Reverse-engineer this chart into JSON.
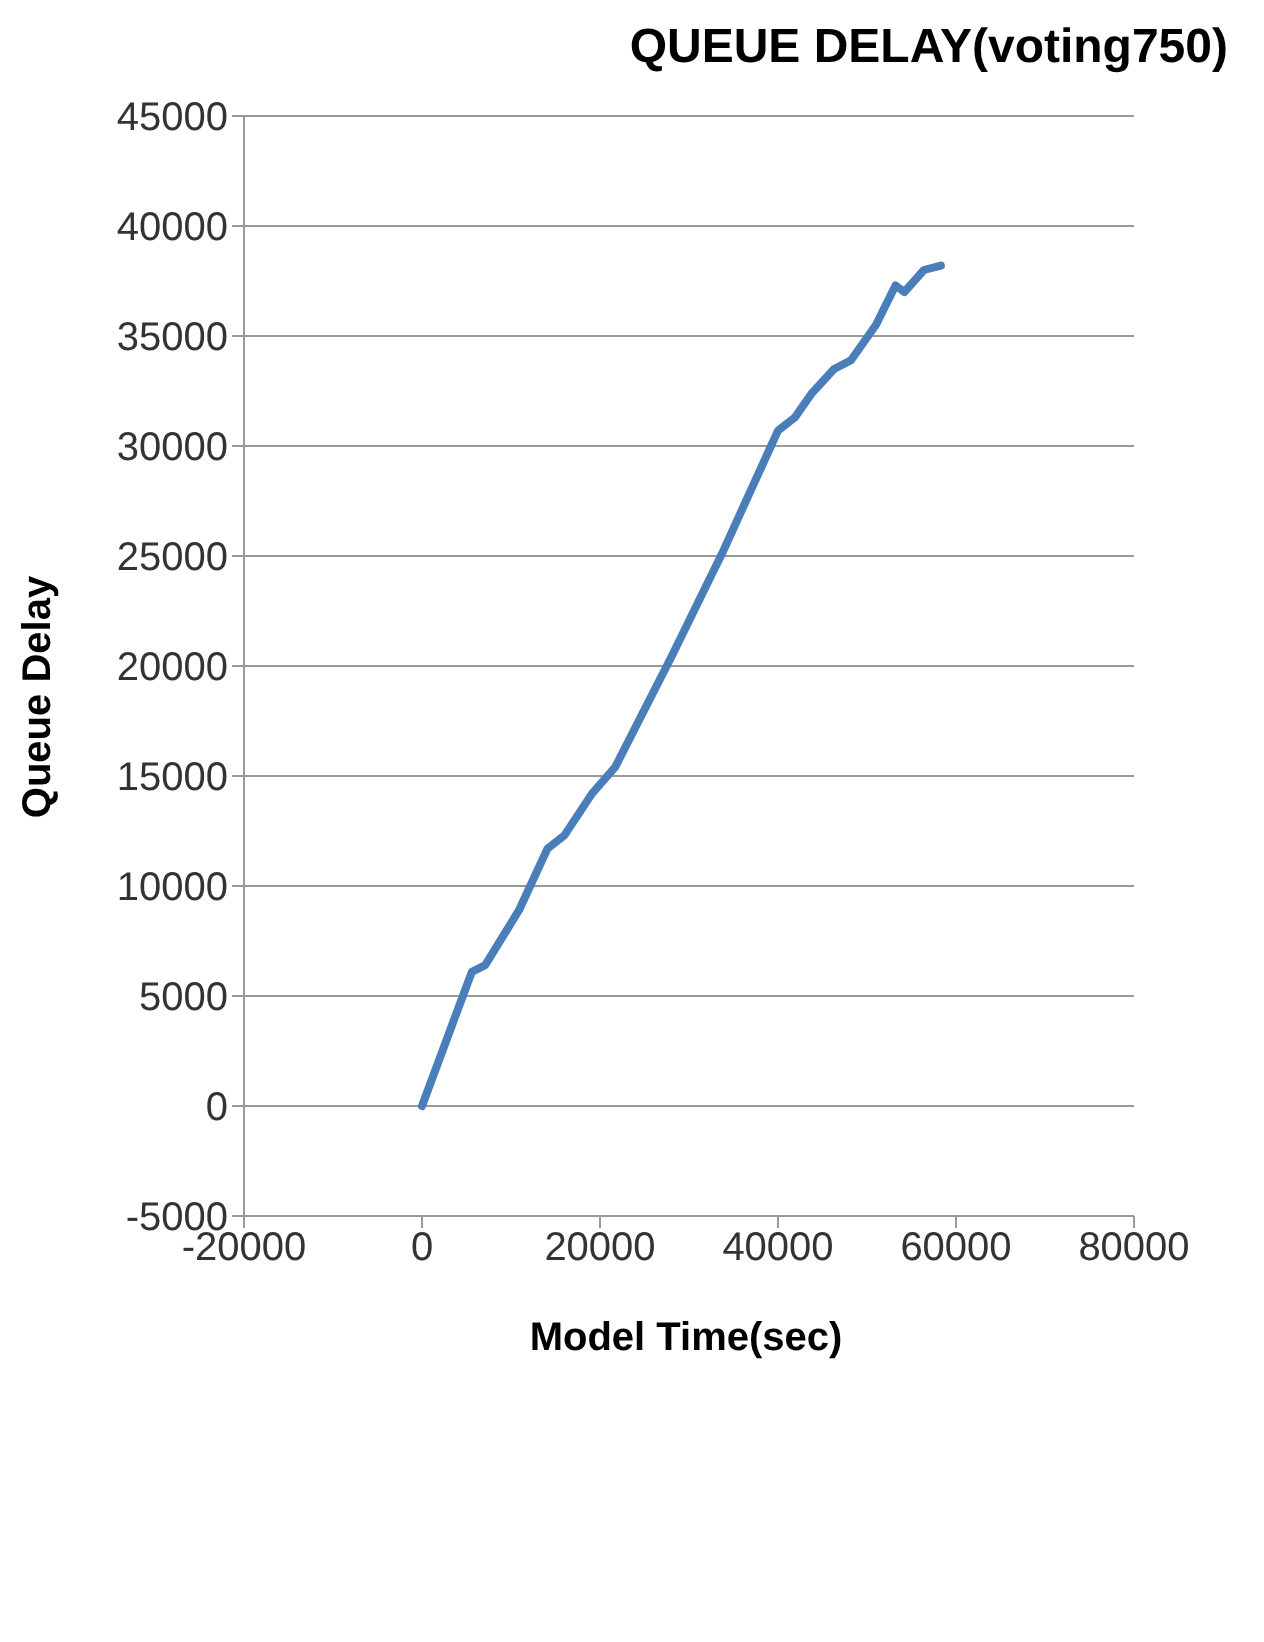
{
  "chart_data": {
    "type": "line",
    "title": "QUEUE DELAY(voting750)",
    "xlabel": "Model Time(sec)",
    "ylabel": "Queue Delay",
    "x": [
      0,
      5600,
      7100,
      10900,
      14100,
      16000,
      19100,
      21700,
      28000,
      33700,
      40000,
      41900,
      43800,
      46300,
      48200,
      51000,
      53200,
      54200,
      56400,
      58300
    ],
    "series": [
      {
        "color": "#4a7ebb",
        "values": [
          0,
          6100,
          6400,
          8900,
          11700,
          12300,
          14200,
          15400,
          20400,
          25100,
          30700,
          31300,
          32400,
          33500,
          33900,
          35500,
          37300,
          37000,
          38000,
          38200
        ]
      }
    ],
    "xlim": [
      -20000,
      80000
    ],
    "xticks": [
      -20000,
      0,
      20000,
      40000,
      60000,
      80000
    ],
    "ylim": [
      -5000,
      45000
    ],
    "yticks": [
      -5000,
      0,
      5000,
      10000,
      15000,
      20000,
      25000,
      30000,
      35000,
      40000,
      45000
    ],
    "grid": "y",
    "marker": "none",
    "line_style": "solid"
  }
}
